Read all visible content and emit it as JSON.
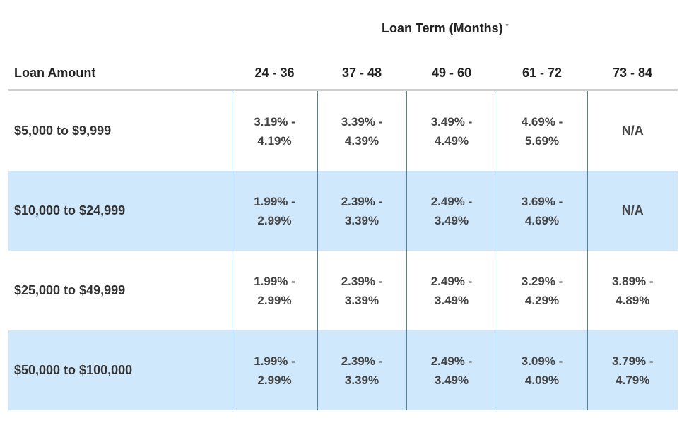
{
  "table": {
    "term_header": "Loan Term (Months)",
    "term_footnote_mark": "*",
    "amount_header": "Loan Amount",
    "columns": [
      "24 - 36",
      "37 - 48",
      "49 - 60",
      "61 - 72",
      "73 - 84"
    ],
    "rows": [
      {
        "amount": "$5,000 to $9,999",
        "rates": [
          [
            "3.19% -",
            "4.19%"
          ],
          [
            "3.39% -",
            "4.39%"
          ],
          [
            "3.49% -",
            "4.49%"
          ],
          [
            "4.69% -",
            "5.69%"
          ],
          [
            "N/A",
            ""
          ]
        ]
      },
      {
        "amount": "$10,000 to $24,999",
        "rates": [
          [
            "1.99% -",
            "2.99%"
          ],
          [
            "2.39% -",
            "3.39%"
          ],
          [
            "2.49% -",
            "3.49%"
          ],
          [
            "3.69% -",
            "4.69%"
          ],
          [
            "N/A",
            ""
          ]
        ]
      },
      {
        "amount": "$25,000 to $49,999",
        "rates": [
          [
            "1.99% -",
            "2.99%"
          ],
          [
            "2.39% -",
            "3.39%"
          ],
          [
            "2.49% -",
            "3.49%"
          ],
          [
            "3.29% -",
            "4.29%"
          ],
          [
            "3.89% -",
            "4.89%"
          ]
        ]
      },
      {
        "amount": "$50,000 to $100,000",
        "rates": [
          [
            "1.99% -",
            "2.99%"
          ],
          [
            "2.39% -",
            "3.39%"
          ],
          [
            "2.49% -",
            "3.49%"
          ],
          [
            "3.09% -",
            "4.09%"
          ],
          [
            "3.79% -",
            "4.79%"
          ]
        ]
      }
    ]
  },
  "colors": {
    "shaded_row": "#cfe8fb",
    "column_divider": "#4a7fc1",
    "header_rule": "#cfcfcf"
  }
}
